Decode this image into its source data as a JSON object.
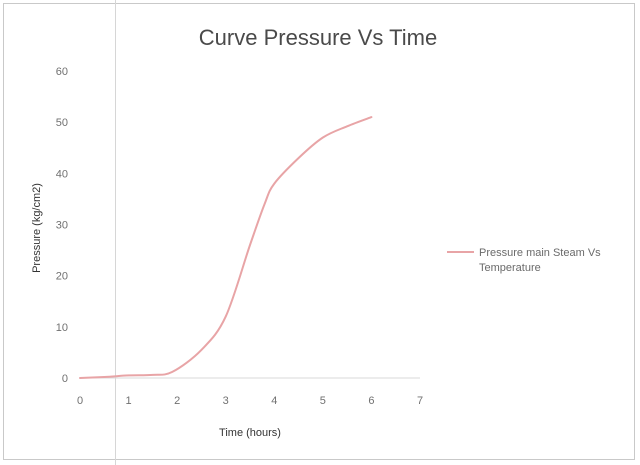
{
  "chart_data": {
    "type": "line",
    "title": "Curve Pressure Vs Time",
    "xlabel": "Time (hours)",
    "ylabel": "Pressure (kg/cm2)",
    "xlim": [
      0,
      7
    ],
    "ylim": [
      0,
      60
    ],
    "xticks": [
      "0",
      "1",
      "2",
      "3",
      "4",
      "5",
      "6",
      "7"
    ],
    "yticks": [
      "0",
      "10",
      "20",
      "30",
      "40",
      "50",
      "60"
    ],
    "grid": false,
    "legend_position": "right",
    "series": [
      {
        "name": "Pressure main Steam Vs Temperature",
        "color": "#e8a4a6",
        "x": [
          0,
          0.5,
          1,
          1.5,
          1.9,
          2.5,
          3,
          3.5,
          3.8,
          4,
          4.5,
          5,
          5.5,
          6
        ],
        "y": [
          0,
          0.2,
          0.5,
          0.6,
          1.2,
          5.5,
          12,
          26,
          34,
          38,
          43,
          47,
          49.2,
          51
        ]
      }
    ]
  }
}
